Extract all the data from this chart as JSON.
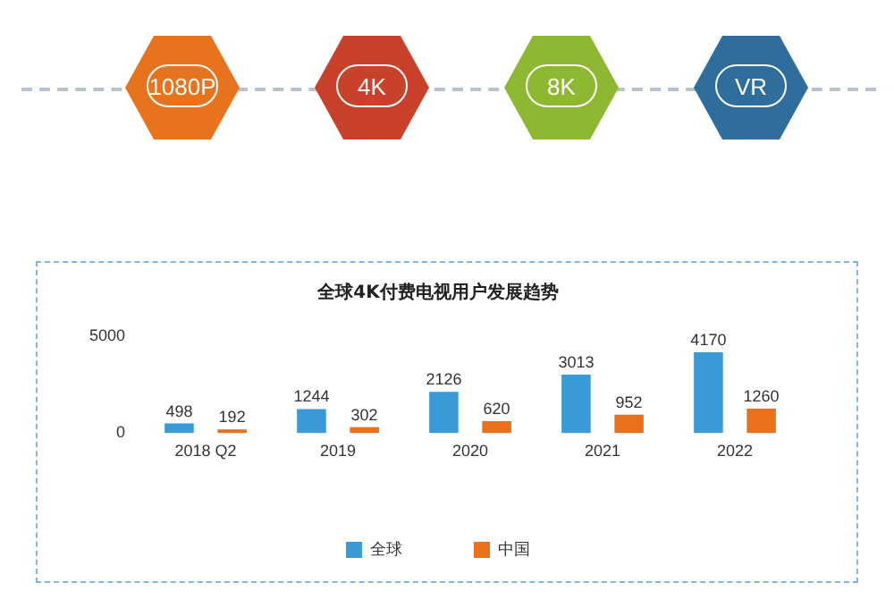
{
  "chart_data": {
    "type": "bar",
    "title": "全球4K付费电视用户发展趋势",
    "categories": [
      "2018 Q2",
      "2019",
      "2020",
      "2021",
      "2022"
    ],
    "series": [
      {
        "name": "全球",
        "color": "#3a9ad6",
        "values": [
          498,
          1244,
          2126,
          3013,
          4170
        ]
      },
      {
        "name": "中国",
        "color": "#ec6f1c",
        "values": [
          192,
          302,
          620,
          952,
          1260
        ]
      }
    ],
    "ylim": [
      0,
      5000
    ],
    "yticks": [
      0,
      5000
    ],
    "grid": false,
    "legend": "bottom",
    "data_labels": true,
    "annotations": [
      "1080P",
      "4K",
      "8K",
      "VR"
    ]
  }
}
